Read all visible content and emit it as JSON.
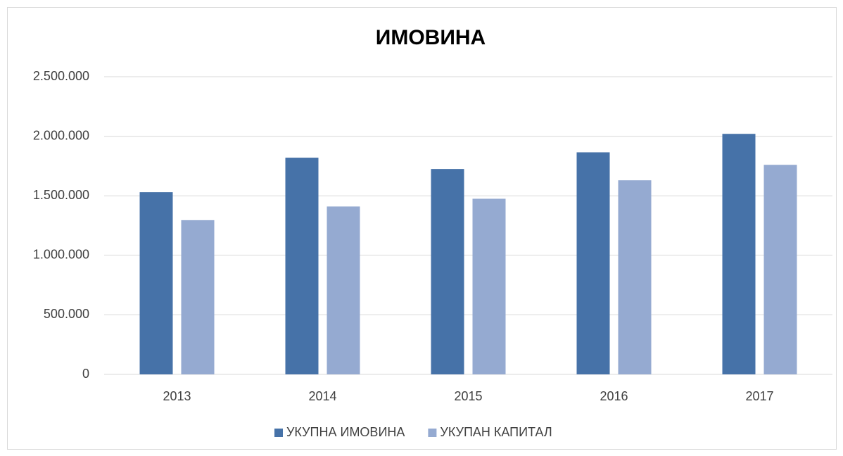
{
  "chart_data": {
    "type": "bar",
    "title": "ИМОВИНА",
    "categories": [
      "2013",
      "2014",
      "2015",
      "2016",
      "2017"
    ],
    "series": [
      {
        "name": "УКУПНА ИМОВИНА",
        "color": "#4672a8",
        "values": [
          1530000,
          1820000,
          1725000,
          1865000,
          2020000
        ]
      },
      {
        "name": "УКУПАН КАПИТАЛ",
        "color": "#95aad1",
        "values": [
          1295000,
          1410000,
          1475000,
          1630000,
          1760000
        ]
      }
    ],
    "ylim": [
      0,
      2500000
    ],
    "yticks": [
      0,
      {
        "value": 500000,
        "label": "500.000"
      },
      {
        "value": 1000000,
        "label": "1.000.000"
      },
      {
        "value": 1500000,
        "label": "1.500.000"
      },
      {
        "value": 2000000,
        "label": "2.000.000"
      },
      {
        "value": 2500000,
        "label": "2.500.000"
      }
    ],
    "grid": true,
    "legend": "bottom"
  }
}
